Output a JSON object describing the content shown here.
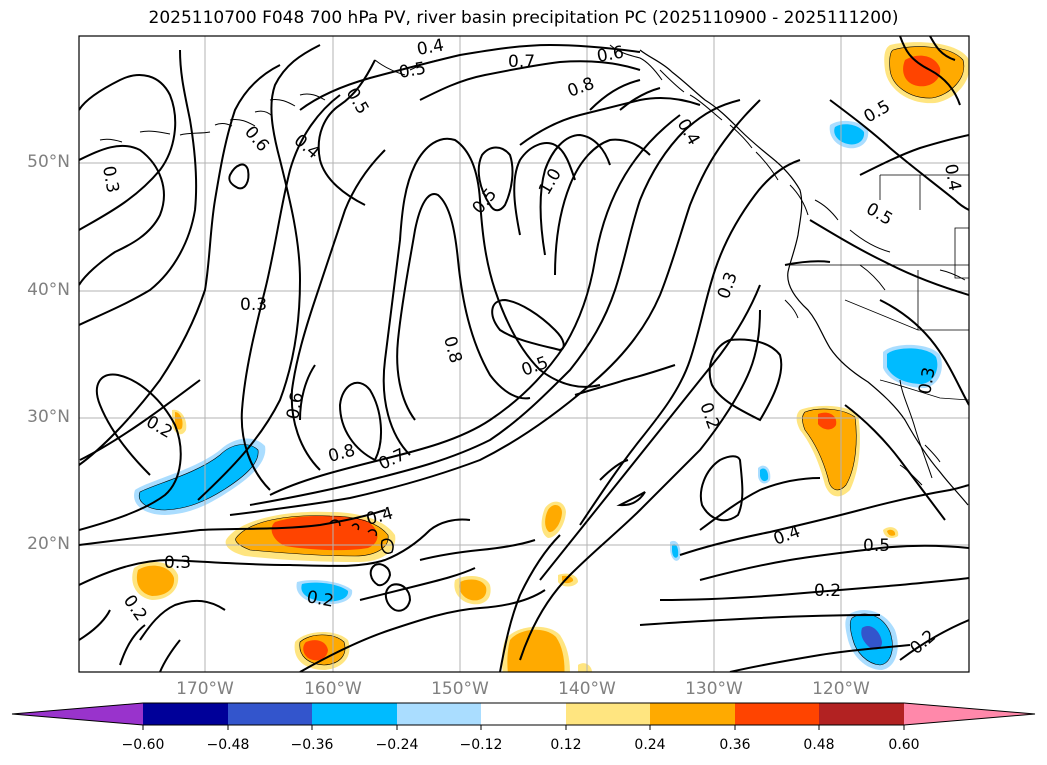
{
  "title": "2025110700 F048 700 hPa PV, river basin precipitation PC (2025110900 - 2025111200)",
  "map": {
    "lon_range": [
      -180,
      -110
    ],
    "lat_range": [
      10,
      60
    ],
    "lat_labels": [
      "50°N",
      "40°N",
      "30°N",
      "20°N"
    ],
    "lon_labels": [
      "170°W",
      "160°W",
      "150°W",
      "140°W",
      "130°W",
      "120°W"
    ]
  },
  "contour_labels": [
    "0.4",
    "0.5",
    "0.7",
    "0.6",
    "0.8",
    "0.4",
    "0.5",
    "0.6",
    "0.4",
    "0.3",
    "0.5",
    "1.0",
    "0.5",
    "0.4",
    "0.5",
    "0.3",
    "0.3",
    "0.8",
    "0.5",
    "0.6",
    "0.2",
    "0.3",
    "0.8",
    "0.7",
    "0.4",
    "0.4",
    "0.5",
    "0.3",
    "0.2",
    "0.2",
    "0.2"
  ],
  "colorbar": {
    "ticks": [
      "−0.60",
      "−0.48",
      "−0.36",
      "−0.24",
      "−0.12",
      "0.12",
      "0.24",
      "0.36",
      "0.48",
      "0.60"
    ],
    "colors": [
      "#9933cc",
      "#000099",
      "#3355cc",
      "#00bbff",
      "#aaddff",
      "#ffffff",
      "#ffe580",
      "#ffaa00",
      "#ff4400",
      "#b22222",
      "#ff88aa"
    ]
  },
  "colors": {
    "contour": "#000000",
    "coast": "#000000",
    "grid": "#b3b3b3",
    "positive_light": "#ffe580",
    "positive_mid": "#ffaa00",
    "positive_strong": "#ff4400",
    "negative_light": "#aaddff",
    "negative_mid": "#00bbff",
    "negative_strong": "#3355cc"
  }
}
